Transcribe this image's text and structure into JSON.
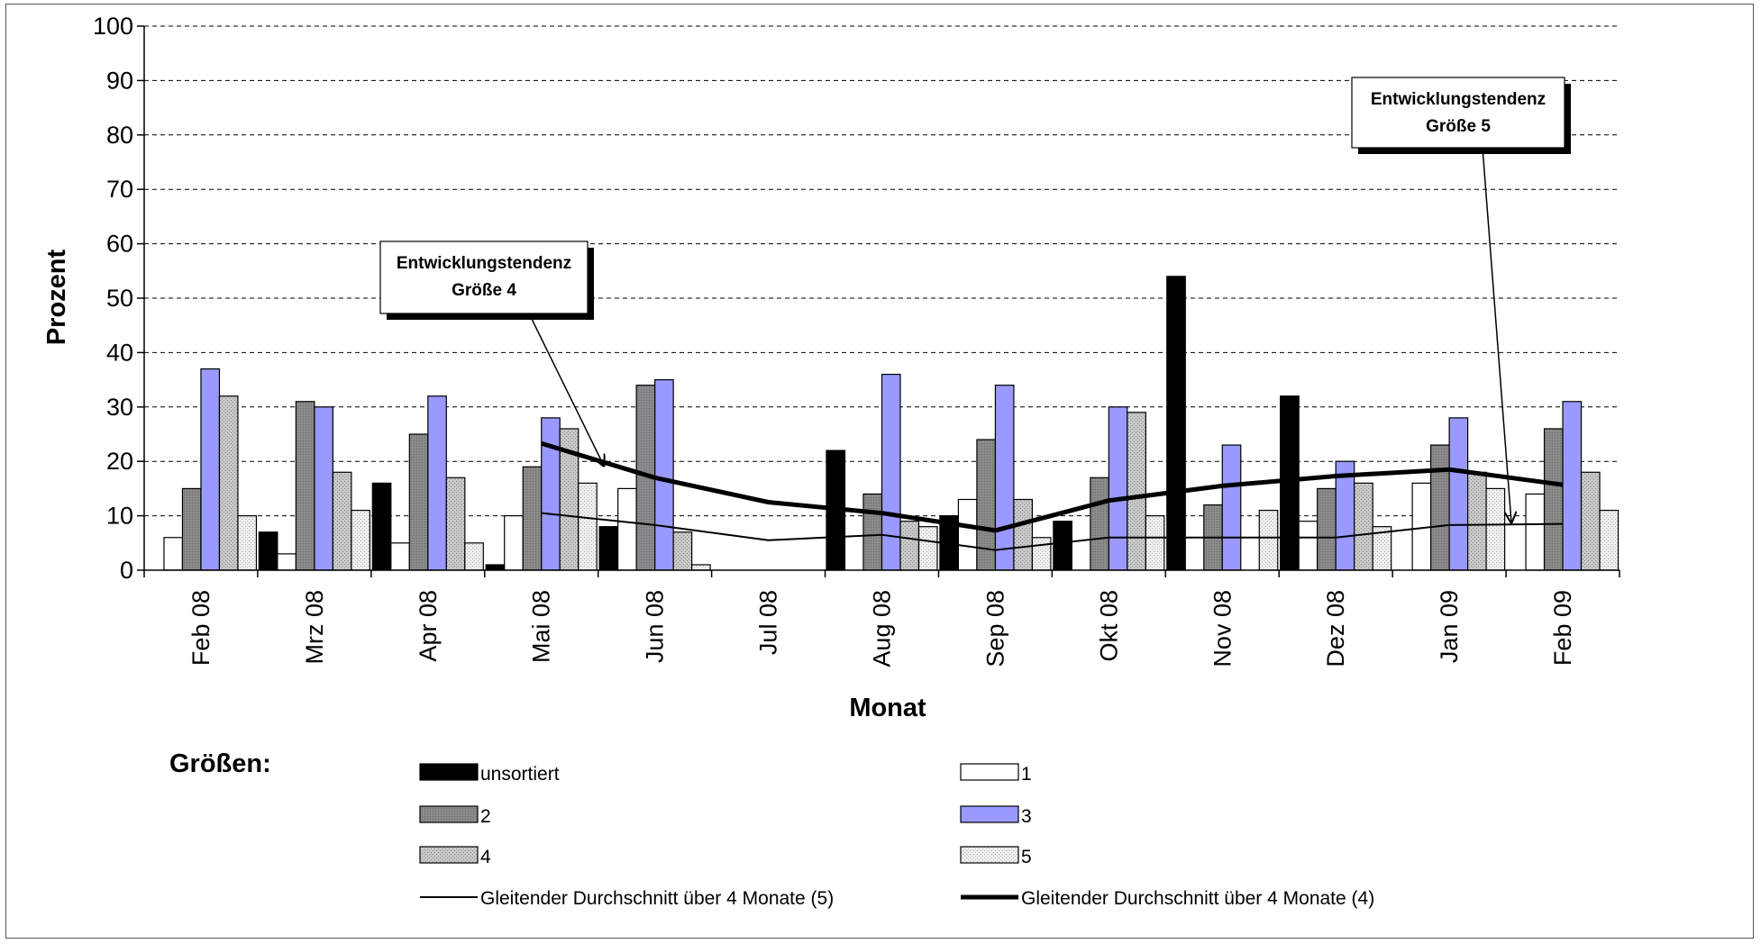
{
  "chart_data": {
    "type": "bar",
    "ylabel": "Prozent",
    "xlabel": "Monat",
    "ylim": [
      0,
      100
    ],
    "yticks": [
      0,
      10,
      20,
      30,
      40,
      50,
      60,
      70,
      80,
      90,
      100
    ],
    "grid": "horizontal dashed",
    "categories": [
      "Feb 08",
      "Mrz 08",
      "Apr 08",
      "Mai 08",
      "Jun 08",
      "Jul 08",
      "Aug 08",
      "Sep 08",
      "Okt 08",
      "Nov 08",
      "Dez 08",
      "Jan 09",
      "Feb 09"
    ],
    "legend_title": "Größen:",
    "series": [
      {
        "name": "unsortiert",
        "type": "bar",
        "values": [
          0,
          7,
          16,
          1,
          8,
          null,
          22,
          10,
          9,
          54,
          32,
          0,
          0
        ]
      },
      {
        "name": "1",
        "type": "bar",
        "values": [
          6,
          3,
          5,
          10,
          15,
          null,
          0,
          13,
          0,
          0,
          9,
          16,
          14
        ]
      },
      {
        "name": "2",
        "type": "bar",
        "values": [
          15,
          31,
          25,
          19,
          34,
          null,
          14,
          24,
          17,
          12,
          15,
          23,
          26
        ]
      },
      {
        "name": "3",
        "type": "bar",
        "values": [
          37,
          30,
          32,
          28,
          35,
          null,
          36,
          34,
          30,
          23,
          20,
          28,
          31
        ]
      },
      {
        "name": "4",
        "type": "bar",
        "values": [
          32,
          18,
          17,
          26,
          7,
          null,
          9,
          13,
          29,
          0,
          16,
          18,
          18
        ]
      },
      {
        "name": "5",
        "type": "bar",
        "values": [
          10,
          11,
          5,
          16,
          1,
          null,
          8,
          6,
          10,
          11,
          8,
          15,
          11
        ]
      },
      {
        "name": "Gleitender Durchschnitt über 4 Monate (5)",
        "type": "line",
        "values": [
          null,
          null,
          null,
          10.5,
          8.3,
          5.5,
          6.5,
          3.7,
          6,
          6,
          6,
          8.3,
          8.5
        ]
      },
      {
        "name": "Gleitender Durchschnitt über 4 Monate (4)",
        "type": "line",
        "values": [
          null,
          null,
          null,
          23.3,
          17,
          12.5,
          10.5,
          7.3,
          12.8,
          15.5,
          17.3,
          18.5,
          15.7
        ]
      }
    ],
    "annotations": [
      {
        "line1": "Entwicklungstendenz",
        "line2": "Größe 4",
        "target_series": "Gleitender Durchschnitt über 4 Monate (4)"
      },
      {
        "line1": "Entwicklungstendenz",
        "line2": "Größe 5",
        "target_series": "Gleitender Durchschnitt über 4 Monate (5)"
      }
    ],
    "colors": {
      "unsortiert": "#000000",
      "1": "#ffffff",
      "2": "#808080",
      "3": "#9999ff",
      "4": "#c8c8c8",
      "5": "#e4e4e4"
    }
  }
}
